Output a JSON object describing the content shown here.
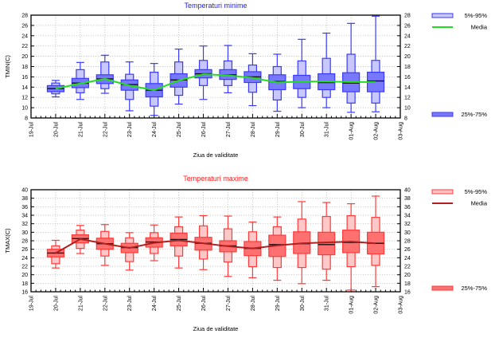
{
  "chart_data": [
    {
      "type": "boxplot",
      "title": "Temperaturi minime",
      "xlabel": "Ziua de validitate",
      "ylabel": "TMIN(C)",
      "ylim": [
        8,
        28
      ],
      "yticks": [
        8,
        10,
        12,
        14,
        16,
        18,
        20,
        22,
        24,
        26,
        28
      ],
      "grid": true,
      "legend_position": "right",
      "colors": {
        "title": "#2020ee",
        "box_outer_fill": "#c8c8ff",
        "box_inner_fill": "#7878ff",
        "box_stroke": "#3a3aff",
        "mean_line": "#22dd22",
        "median": "#111111"
      },
      "legend": [
        {
          "label": "5%-95%",
          "kind": "outer-box"
        },
        {
          "label": "Media",
          "kind": "line"
        },
        {
          "label": "25%-75%",
          "kind": "inner-box"
        }
      ],
      "x_tick_labels": [
        "19-Jul",
        "20-Jul",
        "21-Jul",
        "22-Jul",
        "23-Jul",
        "24-Jul",
        "25-Jul",
        "26-Jul",
        "27-Jul",
        "28-Jul",
        "29-Jul",
        "30-Jul",
        "31-Jul",
        "01-Aug",
        "02-Aug",
        "03-Aug"
      ],
      "categories": [
        "20-Jul",
        "21-Jul",
        "22-Jul",
        "23-Jul",
        "24-Jul",
        "25-Jul",
        "26-Jul",
        "27-Jul",
        "28-Jul",
        "29-Jul",
        "30-Jul",
        "31-Jul",
        "01-Aug",
        "02-Aug"
      ],
      "series": [
        {
          "name": "max",
          "values": [
            15.3,
            18.8,
            20.2,
            18.9,
            18.6,
            21.4,
            22.0,
            22.1,
            20.5,
            20.4,
            23.3,
            24.5,
            26.4,
            27.8
          ]
        },
        {
          "name": "p95",
          "values": [
            14.8,
            17.4,
            18.9,
            16.5,
            16.9,
            18.9,
            19.2,
            19.1,
            18.3,
            18.0,
            19.1,
            19.6,
            20.4,
            19.2
          ]
        },
        {
          "name": "p75",
          "values": [
            14.3,
            15.7,
            16.4,
            15.4,
            14.7,
            16.6,
            17.4,
            17.4,
            17.0,
            16.4,
            16.3,
            16.6,
            16.8,
            16.9
          ]
        },
        {
          "name": "median",
          "values": [
            13.7,
            14.8,
            15.6,
            14.5,
            13.4,
            15.4,
            16.6,
            16.4,
            16.0,
            15.1,
            15.1,
            14.9,
            14.8,
            15.2
          ]
        },
        {
          "name": "p25",
          "values": [
            13.1,
            13.9,
            14.7,
            13.4,
            12.1,
            14.0,
            15.8,
            15.5,
            14.9,
            13.5,
            13.7,
            13.5,
            13.1,
            13.1
          ]
        },
        {
          "name": "p5",
          "values": [
            12.7,
            12.9,
            13.7,
            11.6,
            10.3,
            12.4,
            14.3,
            14.3,
            13.0,
            11.5,
            12.0,
            12.0,
            10.9,
            10.9
          ]
        },
        {
          "name": "min",
          "values": [
            12.1,
            11.6,
            12.8,
            9.4,
            8.5,
            10.7,
            11.6,
            12.9,
            10.4,
            9.3,
            10.0,
            10.0,
            9.1,
            9.2
          ]
        },
        {
          "name": "Media",
          "values": [
            13.7,
            14.7,
            15.6,
            14.3,
            13.4,
            15.3,
            16.5,
            16.3,
            15.8,
            14.9,
            15.1,
            15.1,
            15.0,
            15.0
          ]
        }
      ]
    },
    {
      "type": "boxplot",
      "title": "Temperaturi maxime",
      "xlabel": "Ziua de validitate",
      "ylabel": "TMAX(C)",
      "ylim": [
        16,
        40
      ],
      "yticks": [
        16,
        18,
        20,
        22,
        24,
        26,
        28,
        30,
        32,
        34,
        36,
        38,
        40
      ],
      "grid": true,
      "legend_position": "right",
      "colors": {
        "title": "#ff2020",
        "box_outer_fill": "#ffc8c8",
        "box_inner_fill": "#ff7070",
        "box_stroke": "#ff3a3a",
        "mean_line": "#b02020",
        "median": "#111111"
      },
      "legend": [
        {
          "label": "5%-95%",
          "kind": "outer-box"
        },
        {
          "label": "Media",
          "kind": "line"
        },
        {
          "label": "25%-75%",
          "kind": "inner-box"
        }
      ],
      "x_tick_labels": [
        "19-Jul",
        "20-Jul",
        "21-Jul",
        "22-Jul",
        "23-Jul",
        "24-Jul",
        "25-Jul",
        "26-Jul",
        "27-Jul",
        "28-Jul",
        "29-Jul",
        "30-Jul",
        "31-Jul",
        "01-Aug",
        "02-Aug",
        "03-Aug"
      ],
      "categories": [
        "20-Jul",
        "21-Jul",
        "22-Jul",
        "23-Jul",
        "24-Jul",
        "25-Jul",
        "26-Jul",
        "27-Jul",
        "28-Jul",
        "29-Jul",
        "30-Jul",
        "31-Jul",
        "01-Aug",
        "02-Aug"
      ],
      "series": [
        {
          "name": "max",
          "values": [
            28.1,
            31.6,
            31.8,
            29.9,
            31.7,
            33.6,
            33.9,
            33.8,
            32.4,
            33.6,
            37.2,
            37.0,
            36.7,
            38.5
          ]
        },
        {
          "name": "p95",
          "values": [
            26.8,
            30.5,
            30.2,
            28.7,
            29.9,
            31.3,
            31.5,
            30.8,
            30.1,
            31.3,
            33.1,
            33.7,
            33.9,
            33.5
          ]
        },
        {
          "name": "p75",
          "values": [
            26.0,
            29.4,
            28.6,
            27.4,
            28.7,
            29.8,
            28.8,
            28.0,
            27.8,
            29.3,
            30.1,
            30.0,
            30.5,
            30.0
          ]
        },
        {
          "name": "median",
          "values": [
            25.1,
            28.5,
            27.3,
            26.4,
            27.7,
            28.3,
            27.4,
            26.8,
            26.2,
            27.1,
            27.3,
            27.1,
            27.6,
            27.4
          ]
        },
        {
          "name": "p25",
          "values": [
            24.2,
            27.5,
            26.0,
            25.2,
            26.5,
            26.8,
            25.8,
            25.4,
            24.5,
            24.3,
            25.0,
            24.7,
            25.2,
            24.9
          ]
        },
        {
          "name": "p5",
          "values": [
            22.6,
            26.2,
            24.4,
            23.1,
            25.0,
            24.4,
            23.7,
            23.0,
            21.9,
            21.7,
            21.7,
            21.3,
            21.9,
            22.2
          ]
        },
        {
          "name": "min",
          "values": [
            21.6,
            25.0,
            22.2,
            21.1,
            23.3,
            21.6,
            21.2,
            19.6,
            19.3,
            18.7,
            17.9,
            18.7,
            16.4,
            17.2
          ]
        },
        {
          "name": "Media",
          "values": [
            25.1,
            28.4,
            27.3,
            26.3,
            27.5,
            28.1,
            27.4,
            26.7,
            26.2,
            26.9,
            27.4,
            27.6,
            27.8,
            27.4
          ]
        }
      ]
    }
  ]
}
